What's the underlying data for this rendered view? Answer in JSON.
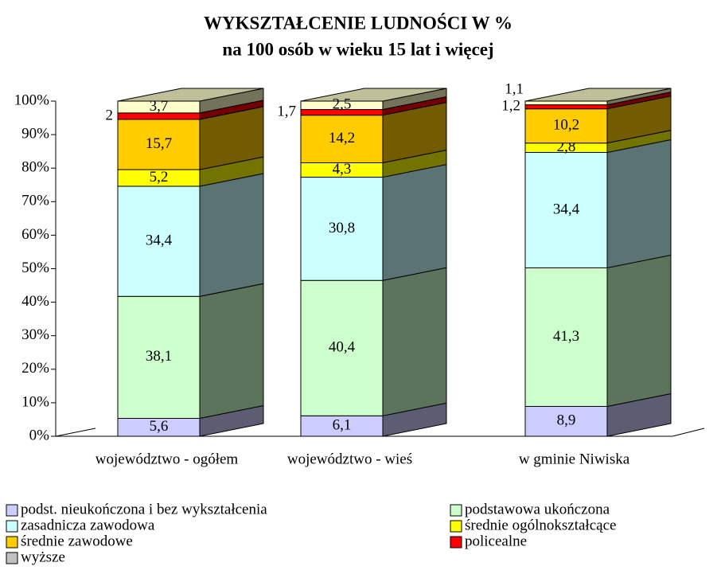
{
  "chart_data": {
    "type": "bar3d_stacked_percent",
    "title": "WYKSZTAŁCENIE  LUDNOŚCI  W   %",
    "subtitle": "na 100 osób w wieku 15 lat i więcej",
    "categories": [
      "województwo - ogółem",
      "województwo - wieś",
      "w gminie Niwiska"
    ],
    "stacking": "percent",
    "series": [
      {
        "name": "podst. nieukończona i bez wykształcenia",
        "color": "#ccccff",
        "values": [
          5.6,
          6.1,
          8.9
        ],
        "value_labels": [
          "5,6",
          "6,1",
          "8,9"
        ]
      },
      {
        "name": "podstawowa ukończona",
        "color": "#ccffcc",
        "values": [
          38.1,
          40.4,
          41.3
        ],
        "value_labels": [
          "38,1",
          "40,4",
          "41,3"
        ]
      },
      {
        "name": "zasadnicza zawodowa",
        "color": "#ccffff",
        "values": [
          34.4,
          30.8,
          34.4
        ],
        "value_labels": [
          "34,4",
          "30,8",
          "34,4"
        ]
      },
      {
        "name": "średnie ogólnokształcące",
        "color": "#ffff00",
        "values": [
          5.2,
          4.3,
          2.8
        ],
        "value_labels": [
          "5,2",
          "4,3",
          "2,8"
        ]
      },
      {
        "name": "średnie zawodowe",
        "color": "#ffcc00",
        "values": [
          15.7,
          14.2,
          10.2
        ],
        "value_labels": [
          "15,7",
          "14,2",
          "10,2"
        ]
      },
      {
        "name": "policealne",
        "color": "#ff0000",
        "values": [
          2,
          1.7,
          1.2
        ],
        "value_labels": [
          "2",
          "1,7",
          "1,2"
        ]
      },
      {
        "name": "wyższe",
        "color": "#ffffcc",
        "values": [
          3.7,
          2.5,
          1.1
        ],
        "value_labels": [
          "3,7",
          "2,5",
          "1,1"
        ]
      }
    ],
    "ylim": [
      0,
      100
    ],
    "yticks": [
      {
        "value": 0,
        "label": "0%"
      },
      {
        "value": 10,
        "label": "10%"
      },
      {
        "value": 20,
        "label": "20%"
      },
      {
        "value": 30,
        "label": "30%"
      },
      {
        "value": 40,
        "label": "40%"
      },
      {
        "value": 50,
        "label": "50%"
      },
      {
        "value": 60,
        "label": "60%"
      },
      {
        "value": 70,
        "label": "70%"
      },
      {
        "value": 80,
        "label": "80%"
      },
      {
        "value": 90,
        "label": "90%"
      },
      {
        "value": 100,
        "label": "100%"
      }
    ],
    "legend": "bottom"
  }
}
